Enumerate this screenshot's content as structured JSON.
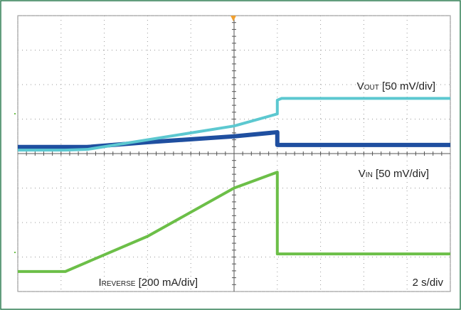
{
  "chart_data": {
    "type": "line",
    "x": [
      0,
      1.1,
      1.6,
      3,
      5,
      6,
      6,
      6.1,
      10
    ],
    "series": [
      {
        "color": "#1f4fa0",
        "values": [
          4.19,
          4.19,
          4.19,
          4.33,
          4.5,
          4.62,
          4.25,
          4.25,
          4.25
        ]
      },
      {
        "color": "#5cc8d0",
        "values": [
          4.1,
          4.1,
          4.12,
          4.4,
          4.8,
          5.15,
          5.55,
          5.6,
          5.6
        ]
      },
      {
        "color": "#6cbf48",
        "values": [
          0.58,
          0.58,
          0.85,
          1.6,
          3.0,
          3.46,
          1.09,
          1.09,
          1.09
        ]
      }
    ],
    "xlim": [
      0,
      10
    ],
    "ylim": [
      0,
      8
    ],
    "xticks": [
      0,
      1,
      2,
      3,
      4,
      5,
      6,
      7,
      8,
      9,
      10
    ],
    "yticks": [
      0,
      1,
      2,
      3,
      4,
      5,
      6,
      7,
      8
    ],
    "grid": true,
    "annotations": [
      {
        "main": "V",
        "sub": "OUT",
        "text": "[50 mV/div]"
      },
      {
        "main": "V",
        "sub": "IN",
        "text": "[50 mV/div]"
      },
      {
        "main": "I",
        "sub": "REVERSE",
        "text": "[200 mA/div]"
      },
      {
        "text": "2 s/div"
      }
    ]
  }
}
